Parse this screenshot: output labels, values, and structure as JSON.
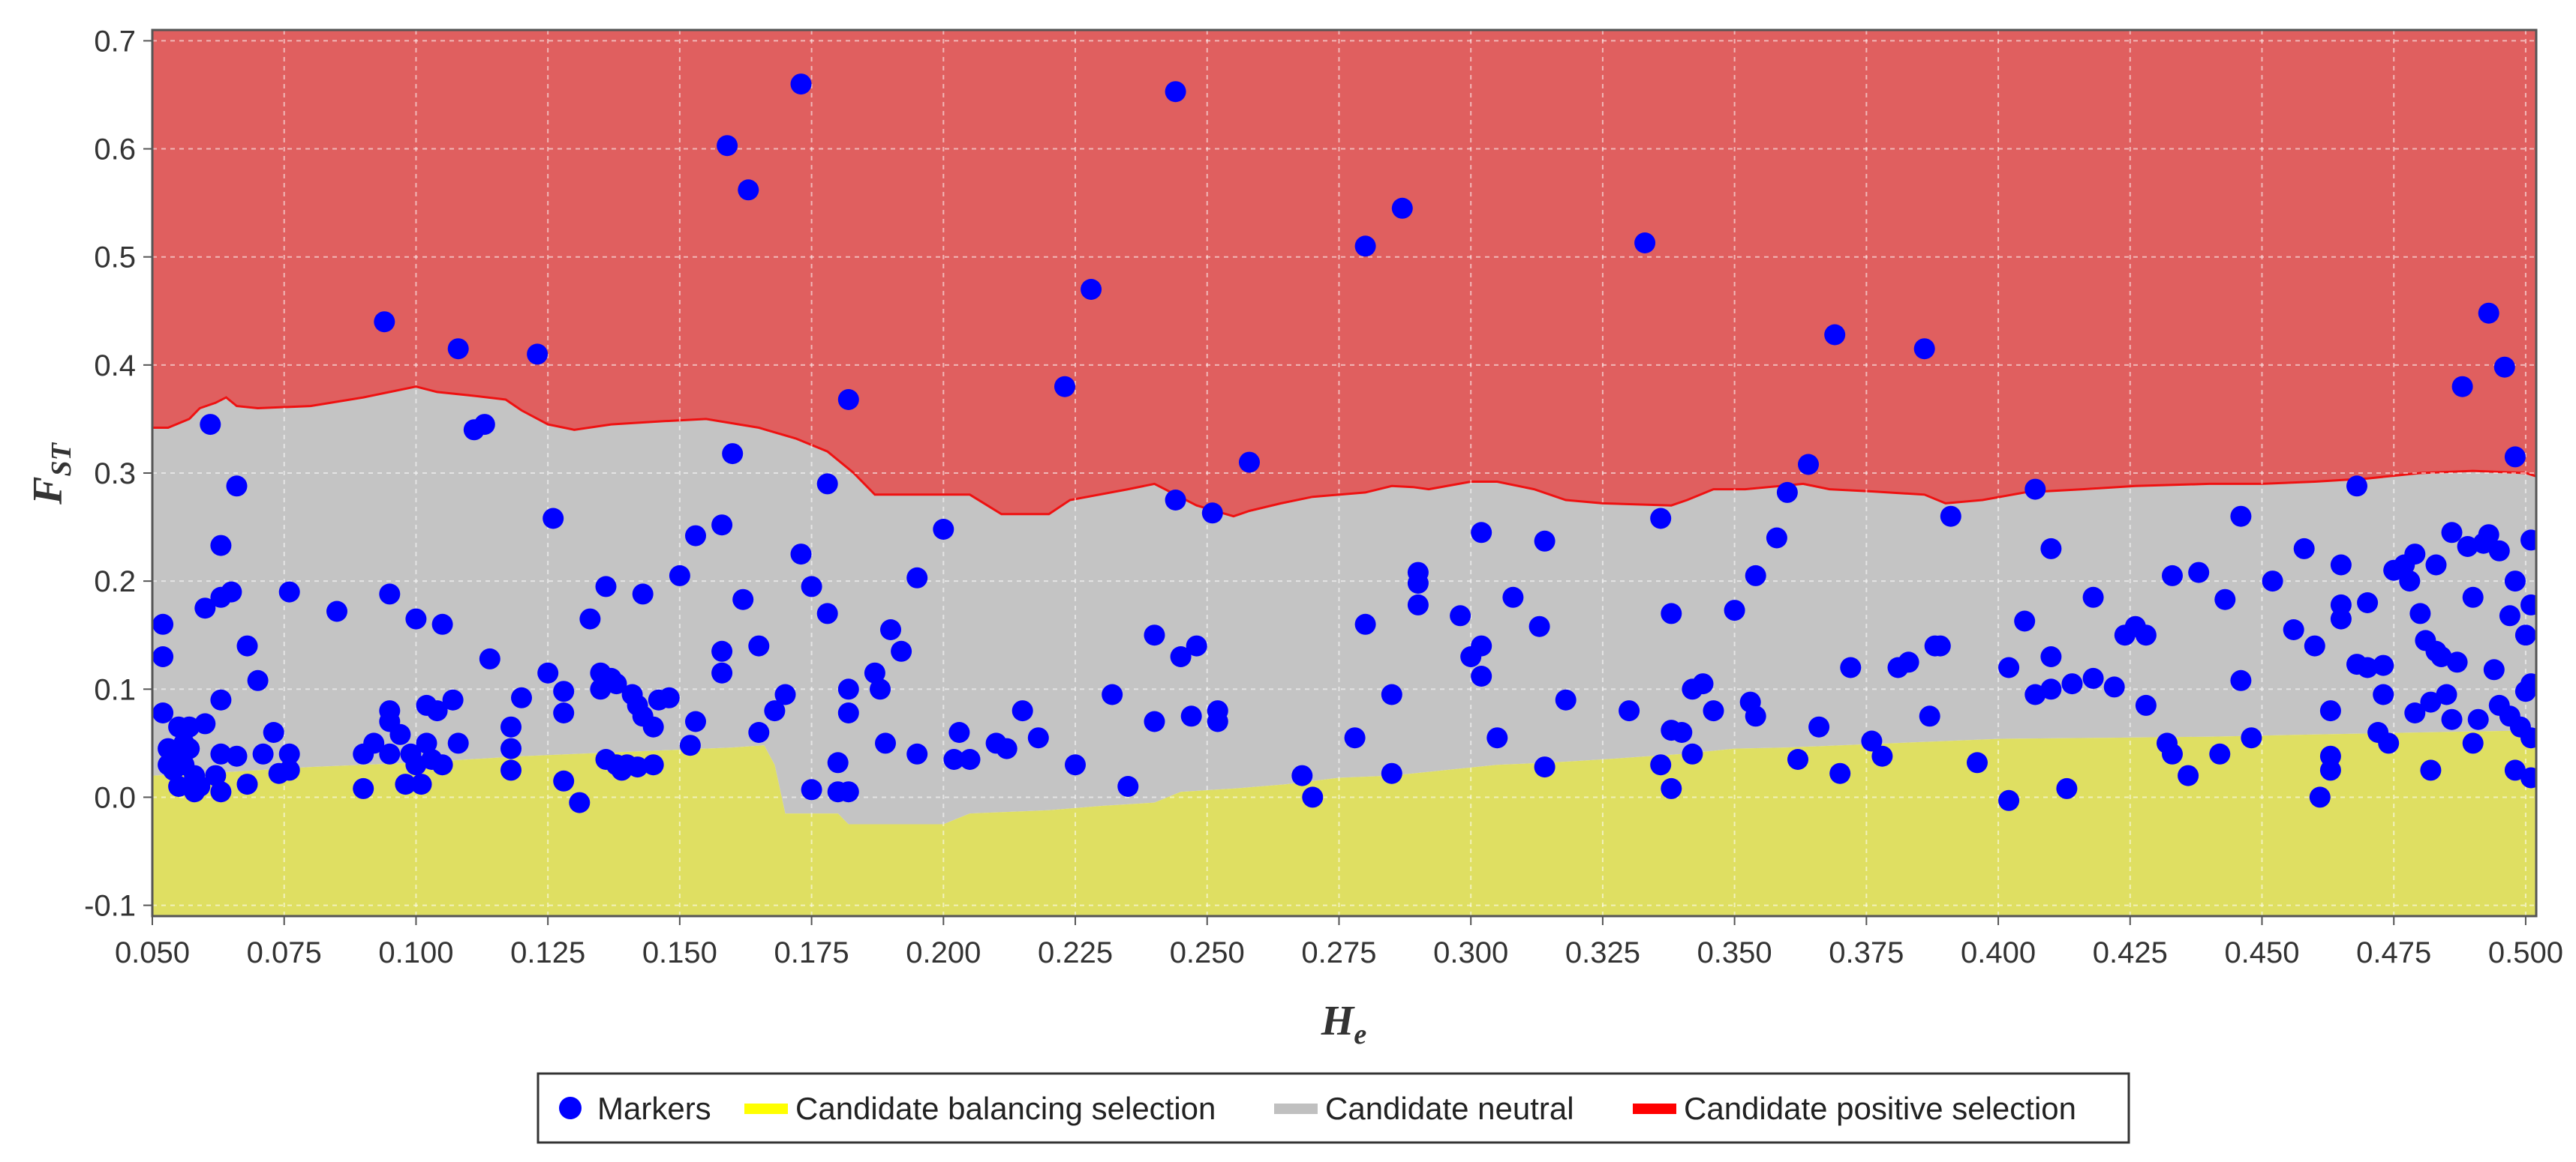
{
  "chart_data": {
    "type": "scatter",
    "xlabel": "H",
    "xlabel_sub": "e",
    "ylabel": "F",
    "ylabel_sub": "ST",
    "xlim": [
      0.05,
      0.502
    ],
    "ylim": [
      -0.11,
      0.71
    ],
    "xticks": [
      "0.050",
      "0.075",
      "0.100",
      "0.125",
      "0.150",
      "0.175",
      "0.200",
      "0.225",
      "0.250",
      "0.275",
      "0.300",
      "0.325",
      "0.350",
      "0.375",
      "0.400",
      "0.425",
      "0.450",
      "0.475",
      "0.500"
    ],
    "yticks": [
      "-0.1",
      "0.0",
      "0.1",
      "0.2",
      "0.3",
      "0.4",
      "0.5",
      "0.6",
      "0.7"
    ],
    "grid": true,
    "legend_position": "bottom-center",
    "legend": [
      {
        "key": "markers",
        "label": "Markers",
        "color": "#0000ff",
        "symbol": "circle"
      },
      {
        "key": "balancing",
        "label": "Candidate balancing selection",
        "color": "#ffff00",
        "symbol": "line"
      },
      {
        "key": "neutral",
        "label": "Candidate neutral",
        "color": "#c0c0c0",
        "symbol": "line"
      },
      {
        "key": "positive",
        "label": "Candidate positive selection",
        "color": "#ff0000",
        "symbol": "line"
      }
    ],
    "region_colors": {
      "positive": "#e05f5f",
      "neutral": "#c4c4c4",
      "balancing": "#dfdf62",
      "upper_line": "#ee1111"
    },
    "upper_boundary": [
      [
        0.05,
        0.342
      ],
      [
        0.053,
        0.342
      ],
      [
        0.057,
        0.35
      ],
      [
        0.059,
        0.36
      ],
      [
        0.062,
        0.365
      ],
      [
        0.064,
        0.37
      ],
      [
        0.066,
        0.362
      ],
      [
        0.07,
        0.36
      ],
      [
        0.08,
        0.362
      ],
      [
        0.09,
        0.37
      ],
      [
        0.095,
        0.375
      ],
      [
        0.1,
        0.38
      ],
      [
        0.104,
        0.375
      ],
      [
        0.11,
        0.372
      ],
      [
        0.117,
        0.368
      ],
      [
        0.12,
        0.358
      ],
      [
        0.125,
        0.345
      ],
      [
        0.13,
        0.34
      ],
      [
        0.137,
        0.345
      ],
      [
        0.147,
        0.348
      ],
      [
        0.155,
        0.35
      ],
      [
        0.165,
        0.342
      ],
      [
        0.172,
        0.332
      ],
      [
        0.178,
        0.32
      ],
      [
        0.183,
        0.3
      ],
      [
        0.187,
        0.28
      ],
      [
        0.2,
        0.28
      ],
      [
        0.205,
        0.28
      ],
      [
        0.211,
        0.262
      ],
      [
        0.22,
        0.262
      ],
      [
        0.224,
        0.275
      ],
      [
        0.235,
        0.285
      ],
      [
        0.24,
        0.29
      ],
      [
        0.248,
        0.27
      ],
      [
        0.255,
        0.26
      ],
      [
        0.258,
        0.265
      ],
      [
        0.264,
        0.272
      ],
      [
        0.27,
        0.278
      ],
      [
        0.28,
        0.282
      ],
      [
        0.285,
        0.288
      ],
      [
        0.289,
        0.287
      ],
      [
        0.292,
        0.285
      ],
      [
        0.3,
        0.292
      ],
      [
        0.305,
        0.292
      ],
      [
        0.312,
        0.285
      ],
      [
        0.318,
        0.275
      ],
      [
        0.325,
        0.272
      ],
      [
        0.338,
        0.27
      ],
      [
        0.341,
        0.275
      ],
      [
        0.346,
        0.285
      ],
      [
        0.352,
        0.285
      ],
      [
        0.363,
        0.29
      ],
      [
        0.368,
        0.285
      ],
      [
        0.376,
        0.283
      ],
      [
        0.386,
        0.28
      ],
      [
        0.39,
        0.272
      ],
      [
        0.397,
        0.275
      ],
      [
        0.405,
        0.282
      ],
      [
        0.416,
        0.285
      ],
      [
        0.426,
        0.288
      ],
      [
        0.44,
        0.29
      ],
      [
        0.45,
        0.29
      ],
      [
        0.46,
        0.292
      ],
      [
        0.47,
        0.295
      ],
      [
        0.48,
        0.3
      ],
      [
        0.49,
        0.302
      ],
      [
        0.5,
        0.3
      ],
      [
        0.502,
        0.297
      ]
    ],
    "lower_boundary": [
      [
        0.05,
        0.02
      ],
      [
        0.06,
        0.022
      ],
      [
        0.07,
        0.025
      ],
      [
        0.08,
        0.028
      ],
      [
        0.09,
        0.03
      ],
      [
        0.1,
        0.032
      ],
      [
        0.11,
        0.035
      ],
      [
        0.12,
        0.038
      ],
      [
        0.13,
        0.04
      ],
      [
        0.14,
        0.042
      ],
      [
        0.15,
        0.044
      ],
      [
        0.16,
        0.046
      ],
      [
        0.166,
        0.048
      ],
      [
        0.168,
        0.03
      ],
      [
        0.17,
        -0.015
      ],
      [
        0.18,
        -0.015
      ],
      [
        0.182,
        -0.025
      ],
      [
        0.2,
        -0.025
      ],
      [
        0.205,
        -0.015
      ],
      [
        0.22,
        -0.012
      ],
      [
        0.23,
        -0.008
      ],
      [
        0.24,
        -0.005
      ],
      [
        0.245,
        0.005
      ],
      [
        0.255,
        0.008
      ],
      [
        0.265,
        0.012
      ],
      [
        0.275,
        0.018
      ],
      [
        0.285,
        0.02
      ],
      [
        0.295,
        0.025
      ],
      [
        0.305,
        0.03
      ],
      [
        0.315,
        0.032
      ],
      [
        0.325,
        0.035
      ],
      [
        0.34,
        0.04
      ],
      [
        0.35,
        0.045
      ],
      [
        0.36,
        0.046
      ],
      [
        0.37,
        0.048
      ],
      [
        0.38,
        0.05
      ],
      [
        0.39,
        0.052
      ],
      [
        0.4,
        0.054
      ],
      [
        0.42,
        0.055
      ],
      [
        0.44,
        0.056
      ],
      [
        0.46,
        0.058
      ],
      [
        0.48,
        0.06
      ],
      [
        0.502,
        0.062
      ]
    ],
    "points": [
      [
        0.052,
        0.16
      ],
      [
        0.052,
        0.13
      ],
      [
        0.052,
        0.078
      ],
      [
        0.053,
        0.045
      ],
      [
        0.053,
        0.03
      ],
      [
        0.054,
        0.04
      ],
      [
        0.054,
        0.025
      ],
      [
        0.055,
        0.065
      ],
      [
        0.055,
        0.01
      ],
      [
        0.056,
        0.05
      ],
      [
        0.056,
        0.03
      ],
      [
        0.057,
        0.065
      ],
      [
        0.057,
        0.045
      ],
      [
        0.058,
        0.005
      ],
      [
        0.058,
        0.02
      ],
      [
        0.059,
        0.01
      ],
      [
        0.06,
        0.068
      ],
      [
        0.06,
        0.175
      ],
      [
        0.061,
        0.345
      ],
      [
        0.062,
        0.02
      ],
      [
        0.063,
        0.005
      ],
      [
        0.063,
        0.04
      ],
      [
        0.063,
        0.09
      ],
      [
        0.063,
        0.185
      ],
      [
        0.063,
        0.233
      ],
      [
        0.065,
        0.19
      ],
      [
        0.066,
        0.288
      ],
      [
        0.066,
        0.038
      ],
      [
        0.068,
        0.14
      ],
      [
        0.068,
        0.012
      ],
      [
        0.07,
        0.108
      ],
      [
        0.071,
        0.04
      ],
      [
        0.073,
        0.06
      ],
      [
        0.074,
        0.022
      ],
      [
        0.076,
        0.19
      ],
      [
        0.076,
        0.04
      ],
      [
        0.076,
        0.025
      ],
      [
        0.085,
        0.172
      ],
      [
        0.09,
        0.008
      ],
      [
        0.09,
        0.04
      ],
      [
        0.092,
        0.05
      ],
      [
        0.094,
        0.44
      ],
      [
        0.095,
        0.08
      ],
      [
        0.095,
        0.07
      ],
      [
        0.095,
        0.188
      ],
      [
        0.095,
        0.04
      ],
      [
        0.097,
        0.058
      ],
      [
        0.098,
        0.012
      ],
      [
        0.099,
        0.04
      ],
      [
        0.1,
        0.165
      ],
      [
        0.1,
        0.03
      ],
      [
        0.101,
        0.012
      ],
      [
        0.102,
        0.085
      ],
      [
        0.102,
        0.05
      ],
      [
        0.103,
        0.035
      ],
      [
        0.104,
        0.08
      ],
      [
        0.105,
        0.16
      ],
      [
        0.105,
        0.03
      ],
      [
        0.107,
        0.09
      ],
      [
        0.108,
        0.415
      ],
      [
        0.108,
        0.05
      ],
      [
        0.111,
        0.34
      ],
      [
        0.113,
        0.345
      ],
      [
        0.114,
        0.128
      ],
      [
        0.118,
        0.065
      ],
      [
        0.118,
        0.045
      ],
      [
        0.118,
        0.025
      ],
      [
        0.12,
        0.092
      ],
      [
        0.123,
        0.41
      ],
      [
        0.125,
        0.115
      ],
      [
        0.126,
        0.258
      ],
      [
        0.128,
        0.098
      ],
      [
        0.128,
        0.078
      ],
      [
        0.128,
        0.015
      ],
      [
        0.131,
        -0.005
      ],
      [
        0.133,
        0.165
      ],
      [
        0.135,
        0.115
      ],
      [
        0.135,
        0.1
      ],
      [
        0.136,
        0.195
      ],
      [
        0.136,
        0.035
      ],
      [
        0.137,
        0.11
      ],
      [
        0.138,
        0.105
      ],
      [
        0.138,
        0.03
      ],
      [
        0.139,
        0.025
      ],
      [
        0.14,
        0.03
      ],
      [
        0.141,
        0.095
      ],
      [
        0.142,
        0.085
      ],
      [
        0.142,
        0.028
      ],
      [
        0.143,
        0.075
      ],
      [
        0.143,
        0.188
      ],
      [
        0.145,
        0.065
      ],
      [
        0.145,
        0.03
      ],
      [
        0.146,
        0.09
      ],
      [
        0.148,
        0.092
      ],
      [
        0.15,
        0.205
      ],
      [
        0.152,
        0.048
      ],
      [
        0.153,
        0.242
      ],
      [
        0.153,
        0.07
      ],
      [
        0.158,
        0.252
      ],
      [
        0.158,
        0.135
      ],
      [
        0.158,
        0.115
      ],
      [
        0.159,
        0.603
      ],
      [
        0.16,
        0.318
      ],
      [
        0.162,
        0.183
      ],
      [
        0.163,
        0.562
      ],
      [
        0.165,
        0.14
      ],
      [
        0.165,
        0.06
      ],
      [
        0.168,
        0.08
      ],
      [
        0.17,
        0.095
      ],
      [
        0.173,
        0.66
      ],
      [
        0.173,
        0.225
      ],
      [
        0.175,
        0.195
      ],
      [
        0.175,
        0.007
      ],
      [
        0.178,
        0.29
      ],
      [
        0.178,
        0.17
      ],
      [
        0.18,
        0.032
      ],
      [
        0.18,
        0.005
      ],
      [
        0.182,
        0.368
      ],
      [
        0.182,
        0.1
      ],
      [
        0.182,
        0.005
      ],
      [
        0.182,
        0.078
      ],
      [
        0.187,
        0.115
      ],
      [
        0.188,
        0.1
      ],
      [
        0.189,
        0.05
      ],
      [
        0.19,
        0.155
      ],
      [
        0.192,
        0.135
      ],
      [
        0.195,
        0.203
      ],
      [
        0.195,
        0.04
      ],
      [
        0.2,
        0.248
      ],
      [
        0.202,
        0.035
      ],
      [
        0.203,
        0.06
      ],
      [
        0.205,
        0.035
      ],
      [
        0.21,
        0.05
      ],
      [
        0.212,
        0.045
      ],
      [
        0.215,
        0.08
      ],
      [
        0.218,
        0.055
      ],
      [
        0.223,
        0.38
      ],
      [
        0.225,
        0.03
      ],
      [
        0.228,
        0.47
      ],
      [
        0.232,
        0.095
      ],
      [
        0.235,
        0.01
      ],
      [
        0.24,
        0.15
      ],
      [
        0.24,
        0.07
      ],
      [
        0.244,
        0.653
      ],
      [
        0.244,
        0.275
      ],
      [
        0.245,
        0.13
      ],
      [
        0.247,
        0.075
      ],
      [
        0.248,
        0.14
      ],
      [
        0.251,
        0.263
      ],
      [
        0.252,
        0.08
      ],
      [
        0.252,
        0.07
      ],
      [
        0.258,
        0.31
      ],
      [
        0.268,
        0.02
      ],
      [
        0.27,
        0.0
      ],
      [
        0.278,
        0.055
      ],
      [
        0.28,
        0.51
      ],
      [
        0.28,
        0.16
      ],
      [
        0.285,
        0.095
      ],
      [
        0.285,
        0.022
      ],
      [
        0.287,
        0.545
      ],
      [
        0.29,
        0.208
      ],
      [
        0.29,
        0.198
      ],
      [
        0.29,
        0.178
      ],
      [
        0.298,
        0.168
      ],
      [
        0.3,
        0.13
      ],
      [
        0.302,
        0.245
      ],
      [
        0.302,
        0.14
      ],
      [
        0.302,
        0.112
      ],
      [
        0.305,
        0.055
      ],
      [
        0.308,
        0.185
      ],
      [
        0.313,
        0.158
      ],
      [
        0.314,
        0.237
      ],
      [
        0.314,
        0.028
      ],
      [
        0.318,
        0.09
      ],
      [
        0.33,
        0.08
      ],
      [
        0.333,
        0.513
      ],
      [
        0.336,
        0.258
      ],
      [
        0.336,
        0.03
      ],
      [
        0.338,
        0.17
      ],
      [
        0.338,
        0.062
      ],
      [
        0.338,
        0.008
      ],
      [
        0.34,
        0.06
      ],
      [
        0.342,
        0.04
      ],
      [
        0.342,
        0.1
      ],
      [
        0.344,
        0.105
      ],
      [
        0.346,
        0.08
      ],
      [
        0.35,
        0.173
      ],
      [
        0.353,
        0.088
      ],
      [
        0.354,
        0.075
      ],
      [
        0.354,
        0.205
      ],
      [
        0.358,
        0.24
      ],
      [
        0.36,
        0.282
      ],
      [
        0.362,
        0.035
      ],
      [
        0.364,
        0.308
      ],
      [
        0.366,
        0.065
      ],
      [
        0.369,
        0.428
      ],
      [
        0.37,
        0.022
      ],
      [
        0.372,
        0.12
      ],
      [
        0.376,
        0.052
      ],
      [
        0.378,
        0.038
      ],
      [
        0.381,
        0.12
      ],
      [
        0.383,
        0.125
      ],
      [
        0.386,
        0.415
      ],
      [
        0.387,
        0.075
      ],
      [
        0.388,
        0.14
      ],
      [
        0.389,
        0.14
      ],
      [
        0.391,
        0.26
      ],
      [
        0.396,
        0.032
      ],
      [
        0.402,
        0.12
      ],
      [
        0.402,
        -0.003
      ],
      [
        0.405,
        0.163
      ],
      [
        0.407,
        0.285
      ],
      [
        0.407,
        0.095
      ],
      [
        0.41,
        0.23
      ],
      [
        0.41,
        0.1
      ],
      [
        0.41,
        0.13
      ],
      [
        0.413,
        0.008
      ],
      [
        0.414,
        0.105
      ],
      [
        0.418,
        0.11
      ],
      [
        0.418,
        0.185
      ],
      [
        0.422,
        0.102
      ],
      [
        0.424,
        0.15
      ],
      [
        0.426,
        0.158
      ],
      [
        0.428,
        0.085
      ],
      [
        0.428,
        0.15
      ],
      [
        0.432,
        0.05
      ],
      [
        0.433,
        0.205
      ],
      [
        0.433,
        0.04
      ],
      [
        0.436,
        0.02
      ],
      [
        0.438,
        0.208
      ],
      [
        0.442,
        0.04
      ],
      [
        0.443,
        0.183
      ],
      [
        0.446,
        0.26
      ],
      [
        0.446,
        0.108
      ],
      [
        0.448,
        0.055
      ],
      [
        0.452,
        0.2
      ],
      [
        0.456,
        0.155
      ],
      [
        0.458,
        0.23
      ],
      [
        0.46,
        0.14
      ],
      [
        0.461,
        0.0
      ],
      [
        0.463,
        0.038
      ],
      [
        0.463,
        0.025
      ],
      [
        0.463,
        0.08
      ],
      [
        0.465,
        0.178
      ],
      [
        0.465,
        0.165
      ],
      [
        0.465,
        0.215
      ],
      [
        0.468,
        0.288
      ],
      [
        0.468,
        0.123
      ],
      [
        0.47,
        0.18
      ],
      [
        0.47,
        0.12
      ],
      [
        0.472,
        0.06
      ],
      [
        0.473,
        0.095
      ],
      [
        0.473,
        0.122
      ],
      [
        0.474,
        0.05
      ],
      [
        0.475,
        0.21
      ],
      [
        0.477,
        0.215
      ],
      [
        0.478,
        0.2
      ],
      [
        0.479,
        0.078
      ],
      [
        0.479,
        0.225
      ],
      [
        0.48,
        0.17
      ],
      [
        0.481,
        0.145
      ],
      [
        0.482,
        0.088
      ],
      [
        0.482,
        0.025
      ],
      [
        0.483,
        0.215
      ],
      [
        0.483,
        0.135
      ],
      [
        0.484,
        0.13
      ],
      [
        0.485,
        0.095
      ],
      [
        0.486,
        0.245
      ],
      [
        0.486,
        0.072
      ],
      [
        0.487,
        0.125
      ],
      [
        0.488,
        0.38
      ],
      [
        0.489,
        0.232
      ],
      [
        0.49,
        0.05
      ],
      [
        0.49,
        0.185
      ],
      [
        0.491,
        0.072
      ],
      [
        0.492,
        0.235
      ],
      [
        0.493,
        0.243
      ],
      [
        0.493,
        0.448
      ],
      [
        0.494,
        0.118
      ],
      [
        0.495,
        0.228
      ],
      [
        0.495,
        0.085
      ],
      [
        0.496,
        0.398
      ],
      [
        0.497,
        0.075
      ],
      [
        0.497,
        0.168
      ],
      [
        0.498,
        0.025
      ],
      [
        0.498,
        0.2
      ],
      [
        0.498,
        0.315
      ],
      [
        0.499,
        0.065
      ],
      [
        0.5,
        0.15
      ],
      [
        0.5,
        0.098
      ],
      [
        0.501,
        0.055
      ],
      [
        0.501,
        0.018
      ],
      [
        0.501,
        0.238
      ],
      [
        0.501,
        0.178
      ],
      [
        0.501,
        0.105
      ]
    ]
  }
}
